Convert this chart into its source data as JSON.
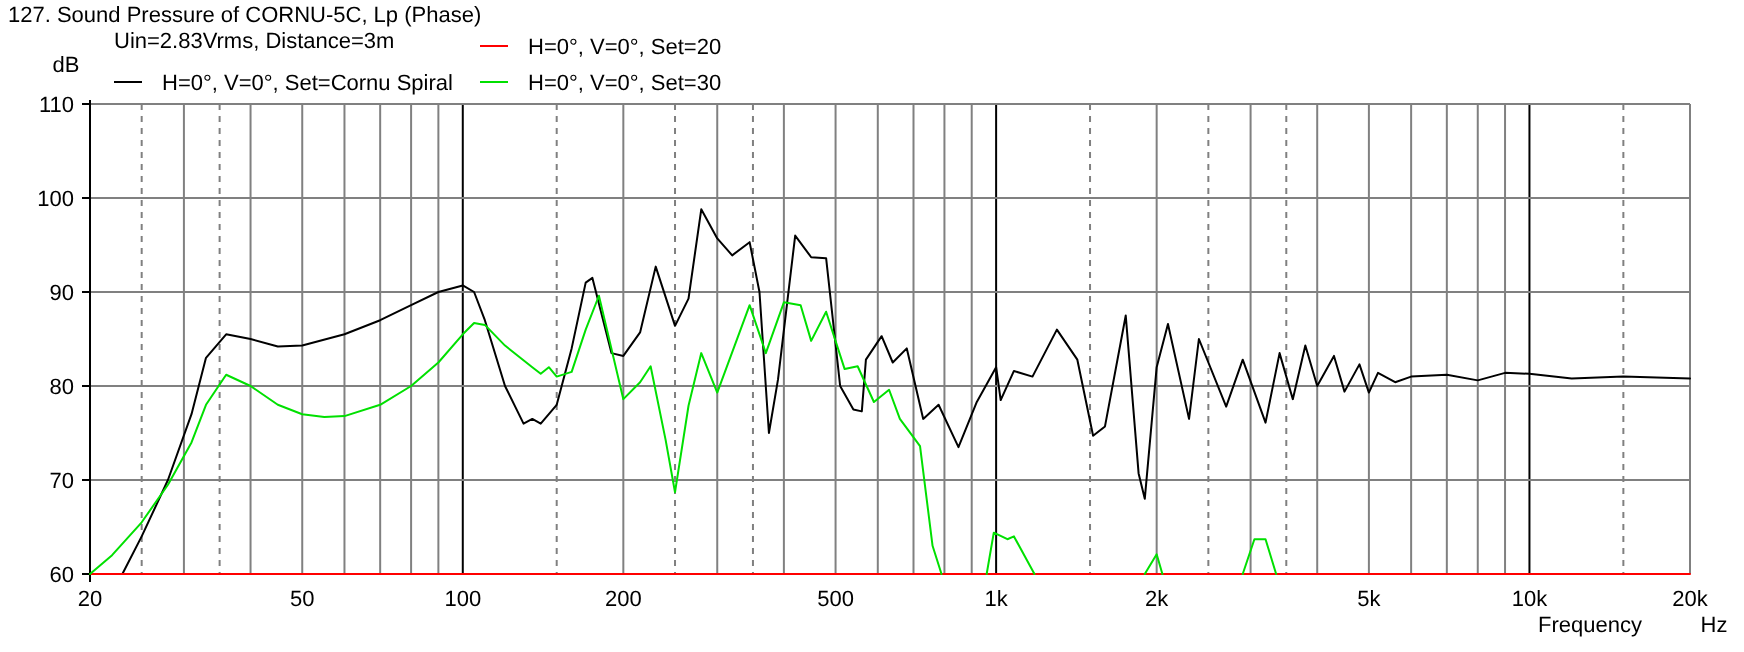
{
  "chart_data": {
    "type": "line",
    "title": "127. Sound Pressure of CORNU-5C, Lp (Phase)",
    "legend_title": "Uin=2.83Vrms, Distance=3m",
    "xlabel": "Frequency",
    "ylabel": "dB",
    "annotations": [
      "Hz"
    ],
    "log": "x",
    "grid": true,
    "legend": "top",
    "line_style": "solid",
    "marker": "none",
    "xlim": [
      20,
      20000
    ],
    "ylim": [
      60,
      110
    ],
    "xticks": [
      20,
      {
        "value": 25,
        "label": null
      },
      {
        "value": 30,
        "label": null
      },
      {
        "value": 35,
        "label": null
      },
      {
        "value": 40,
        "label": null
      },
      50,
      {
        "value": 60,
        "label": null
      },
      {
        "value": 70,
        "label": null
      },
      {
        "value": 80,
        "label": null
      },
      {
        "value": 90,
        "label": null
      },
      100,
      {
        "value": 150,
        "label": null
      },
      200,
      {
        "value": 250,
        "label": null
      },
      {
        "value": 300,
        "label": null
      },
      {
        "value": 350,
        "label": null
      },
      {
        "value": 400,
        "label": null
      },
      500,
      {
        "value": 600,
        "label": null
      },
      {
        "value": 700,
        "label": null
      },
      {
        "value": 800,
        "label": null
      },
      {
        "value": 900,
        "label": null
      },
      {
        "value": 1000,
        "label": "1k"
      },
      {
        "value": 1500,
        "label": null
      },
      {
        "value": 2000,
        "label": "2k"
      },
      {
        "value": 2500,
        "label": null
      },
      {
        "value": 3000,
        "label": null
      },
      {
        "value": 3500,
        "label": null
      },
      {
        "value": 4000,
        "label": null
      },
      {
        "value": 5000,
        "label": "5k"
      },
      {
        "value": 6000,
        "label": null
      },
      {
        "value": 7000,
        "label": null
      },
      {
        "value": 8000,
        "label": null
      },
      {
        "value": 9000,
        "label": null
      },
      {
        "value": 10000,
        "label": "10k"
      },
      {
        "value": 15000,
        "label": null
      },
      {
        "value": 20000,
        "label": "20k"
      }
    ],
    "yticks": [
      60,
      70,
      80,
      90,
      100,
      110
    ],
    "series": [
      {
        "name": "H=0°, V=0°, Set=Cornu Spiral",
        "color": "#000000",
        "x": [
          20,
          23,
          25,
          28,
          31,
          33,
          36,
          40,
          45,
          50,
          60,
          70,
          80,
          90,
          100,
          105,
          110,
          120,
          130,
          135,
          140,
          150,
          160,
          170,
          175,
          190,
          200,
          215,
          230,
          250,
          265,
          280,
          300,
          320,
          345,
          360,
          375,
          390,
          420,
          450,
          480,
          510,
          540,
          560,
          570,
          610,
          640,
          680,
          730,
          780,
          850,
          920,
          1000,
          1020,
          1080,
          1170,
          1300,
          1420,
          1520,
          1600,
          1750,
          1850,
          1900,
          2000,
          2100,
          2300,
          2400,
          2700,
          2900,
          3200,
          3400,
          3600,
          3800,
          4000,
          4300,
          4500,
          4800,
          5000,
          5200,
          5600,
          6000,
          7000,
          8000,
          9000,
          10000,
          12000,
          15000,
          20000
        ],
        "values": [
          60,
          60,
          64,
          70,
          77,
          83,
          85.5,
          85,
          84.2,
          84.3,
          85.5,
          87,
          88.6,
          90,
          90.7,
          90,
          87,
          80,
          76,
          76.5,
          76,
          78,
          84,
          91,
          91.5,
          83.5,
          83.2,
          85.7,
          92.7,
          86.4,
          89.3,
          98.8,
          95.7,
          93.9,
          95.3,
          90,
          75,
          80.7,
          96,
          93.7,
          93.6,
          80,
          77.5,
          77.3,
          82.8,
          85.3,
          82.5,
          84,
          76.5,
          78,
          73.5,
          78.3,
          82,
          78.5,
          81.6,
          81,
          86,
          82.8,
          74.7,
          75.7,
          87.5,
          70.7,
          68,
          82,
          86.6,
          76.5,
          85,
          77.8,
          82.8,
          76.1,
          83.5,
          78.6,
          84.3,
          80,
          83.2,
          79.4,
          82.3,
          79.3,
          81.4,
          80.4,
          81,
          81.2,
          80.6,
          81.4,
          81.3,
          80.8,
          81,
          80.8
        ]
      },
      {
        "name": "H=0°, V=0°, Set=20",
        "color": "#ff0000",
        "x": [
          20,
          20000
        ],
        "values": [
          60,
          60
        ]
      },
      {
        "name": "H=0°, V=0°, Set=30",
        "color": "#00e000",
        "x": [
          20,
          22,
          25,
          28,
          31,
          33,
          36,
          40,
          45,
          50,
          55,
          60,
          70,
          80,
          90,
          100,
          105,
          110,
          120,
          135,
          140,
          145,
          150,
          160,
          170,
          180,
          200,
          215,
          225,
          240,
          250,
          265,
          280,
          300,
          345,
          370,
          400,
          430,
          450,
          480,
          520,
          550,
          590,
          630,
          660,
          720,
          760,
          790,
          800,
          960,
          990,
          1050,
          1080,
          1180,
          1200,
          1900,
          2000,
          2050,
          2100,
          2900,
          3050,
          3200,
          3350
        ],
        "values": [
          60,
          62,
          65.5,
          69.5,
          74,
          78,
          81.2,
          80,
          78,
          77,
          76.7,
          76.8,
          78,
          80,
          82.5,
          85.5,
          86.7,
          86.5,
          84.3,
          82,
          81.3,
          82,
          81,
          81.5,
          86,
          89.6,
          78.6,
          80.4,
          82.1,
          74.3,
          68.7,
          77.9,
          83.5,
          79.3,
          88.6,
          83.5,
          88.9,
          88.6,
          84.8,
          87.9,
          81.8,
          82.1,
          78.3,
          79.6,
          76.5,
          73.6,
          63,
          60,
          null,
          60,
          64.4,
          63.7,
          64,
          60,
          null,
          60,
          62.1,
          60,
          null,
          60,
          63.7,
          63.7,
          60
        ]
      }
    ]
  }
}
